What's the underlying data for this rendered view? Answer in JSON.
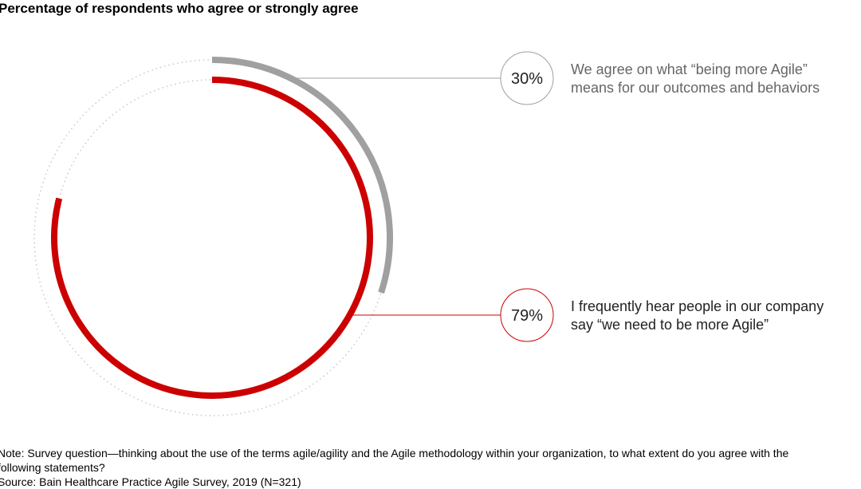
{
  "chart_data": {
    "type": "radial-bar",
    "title": "Percentage of respondents who agree or strongly agree",
    "unit": "%",
    "range": [
      0,
      100
    ],
    "series": [
      {
        "label": "We agree on what “being more Agile” means for our outcomes and behaviors",
        "value": 30,
        "value_label": "30%",
        "color": "#a0a0a0",
        "ring": "outer"
      },
      {
        "label": "I frequently hear people in our company say “we need to be more Agile”",
        "value": 79,
        "value_label": "79%",
        "color": "#cc0000",
        "ring": "inner"
      }
    ],
    "track_color": "#c8c8c8"
  },
  "labels": {
    "s0_line1": "We agree on what “being more Agile”",
    "s0_line2": "means for our outcomes and behaviors",
    "s1_line1": "I frequently hear people in our company",
    "s1_line2": "say “we need to be more Agile”"
  },
  "notes": {
    "note_line1": "Note: Survey question—thinking about the use of the terms agile/agility and the Agile methodology within your organization, to what extent do you agree with the",
    "note_line2": "following statements?",
    "source": "Source: Bain Healthcare Practice Agile Survey, 2019 (N=321)"
  }
}
